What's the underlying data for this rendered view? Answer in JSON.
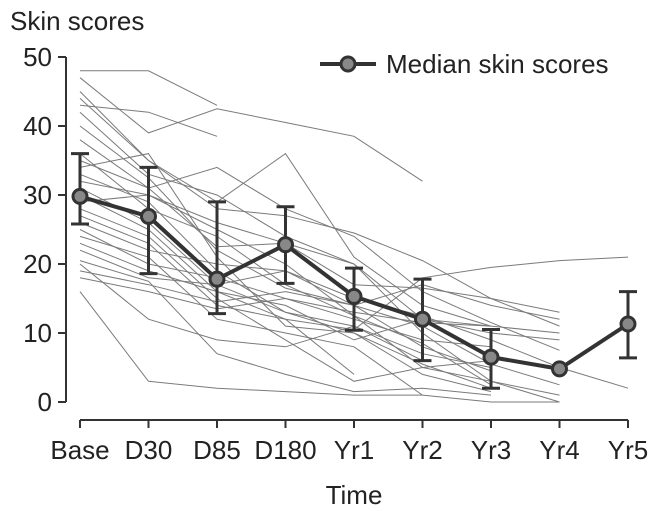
{
  "chart_data": {
    "type": "line",
    "ylabel": "Skin scores",
    "xlabel": "Time",
    "categories": [
      "Base",
      "D30",
      "D85",
      "D180",
      "Yr1",
      "Yr2",
      "Yr3",
      "Yr4",
      "Yr5"
    ],
    "ylim": [
      0,
      50
    ],
    "yticks": [
      0,
      10,
      20,
      30,
      40,
      50
    ],
    "grid": false,
    "legend_position": "top-right",
    "median_series": {
      "name": "Median skin scores",
      "values": [
        29.8,
        26.9,
        17.8,
        22.8,
        15.3,
        12.0,
        6.5,
        4.8,
        11.3
      ],
      "error_low": [
        25.8,
        18.6,
        12.8,
        17.2,
        10.4,
        6.0,
        2.0,
        null,
        6.4
      ],
      "error_high": [
        36.0,
        34.0,
        29.0,
        28.3,
        19.4,
        17.8,
        10.5,
        9.6,
        16.0
      ],
      "color": "#333333",
      "marker_fill": "#888888"
    },
    "individual_series": [
      {
        "values": [
          48.0,
          48.0,
          43.0,
          null,
          null,
          null,
          null,
          null,
          null
        ]
      },
      {
        "values": [
          47.0,
          39.0,
          42.5,
          40.5,
          38.5,
          32.0,
          null,
          null,
          null
        ]
      },
      {
        "values": [
          45.0,
          35.0,
          28.0,
          27.0,
          24.5,
          20.5,
          15.0,
          11.0,
          null
        ]
      },
      {
        "values": [
          44.0,
          35.0,
          29.0,
          36.0,
          21.0,
          14.0,
          11.0,
          null,
          null
        ]
      },
      {
        "values": [
          43.0,
          42.0,
          38.5,
          null,
          null,
          null,
          null,
          null,
          null
        ]
      },
      {
        "values": [
          42.0,
          33.0,
          30.0,
          24.0,
          20.0,
          12.0,
          11.0,
          null,
          null
        ]
      },
      {
        "values": [
          40.0,
          32.5,
          22.0,
          16.5,
          14.0,
          8.0,
          4.5,
          null,
          null
        ]
      },
      {
        "values": [
          38.0,
          31.0,
          22.5,
          23.0,
          20.0,
          10.0,
          3.0,
          1.0,
          null
        ]
      },
      {
        "values": [
          36.0,
          28.0,
          24.0,
          17.0,
          12.5,
          8.5,
          2.5,
          null,
          null
        ]
      },
      {
        "values": [
          35.0,
          31.0,
          34.0,
          28.0,
          24.0,
          16.0,
          11.5,
          7.5,
          null
        ]
      },
      {
        "values": [
          34.0,
          36.0,
          21.0,
          11.0,
          10.0,
          5.5,
          2.0,
          null,
          null
        ]
      },
      {
        "values": [
          33.0,
          29.0,
          19.0,
          13.0,
          10.0,
          4.0,
          1.5,
          null,
          null
        ]
      },
      {
        "values": [
          32.0,
          30.0,
          25.0,
          20.0,
          12.5,
          5.0,
          3.0,
          0.0,
          null
        ]
      },
      {
        "values": [
          31.0,
          26.0,
          17.0,
          19.0,
          14.0,
          11.0,
          5.5,
          2.5,
          null
        ]
      },
      {
        "values": [
          30.0,
          25.0,
          16.0,
          14.0,
          9.0,
          12.0,
          10.0,
          9.0,
          null
        ]
      },
      {
        "values": [
          29.0,
          30.0,
          26.0,
          23.0,
          17.0,
          16.5,
          15.0,
          13.0,
          null
        ]
      },
      {
        "values": [
          28.0,
          24.0,
          15.0,
          9.0,
          3.0,
          5.0,
          6.0,
          null,
          null
        ]
      },
      {
        "values": [
          27.0,
          23.0,
          14.0,
          12.0,
          10.5,
          18.0,
          19.5,
          20.5,
          21.0
        ]
      },
      {
        "values": [
          26.0,
          22.0,
          20.0,
          19.0,
          15.0,
          12.5,
          9.0,
          5.0,
          2.0
        ]
      },
      {
        "values": [
          25.0,
          20.0,
          18.0,
          15.0,
          13.0,
          11.5,
          11.0,
          10.0,
          null
        ]
      },
      {
        "values": [
          24.0,
          21.0,
          12.0,
          10.0,
          8.0,
          1.0,
          0.0,
          0.0,
          null
        ]
      },
      {
        "values": [
          23.0,
          19.0,
          16.0,
          12.0,
          4.0,
          null,
          null,
          null,
          null
        ]
      },
      {
        "values": [
          22.0,
          18.0,
          17.0,
          13.0,
          11.0,
          6.0,
          null,
          null,
          null
        ]
      },
      {
        "values": [
          20.5,
          17.5,
          7.0,
          4.0,
          1.5,
          2.0,
          1.0,
          null,
          null
        ]
      },
      {
        "values": [
          20.0,
          12.0,
          9.0,
          8.0,
          11.0,
          7.0,
          5.0,
          null,
          null
        ]
      },
      {
        "values": [
          19.0,
          17.0,
          14.5,
          16.0,
          14.0,
          17.0,
          14.0,
          12.0,
          null
        ]
      },
      {
        "values": [
          18.0,
          16.0,
          13.5,
          15.0,
          12.0,
          9.0,
          8.0,
          null,
          null
        ]
      },
      {
        "values": [
          16.0,
          3.0,
          2.0,
          1.5,
          1.0,
          1.0,
          null,
          null,
          null
        ]
      }
    ]
  }
}
